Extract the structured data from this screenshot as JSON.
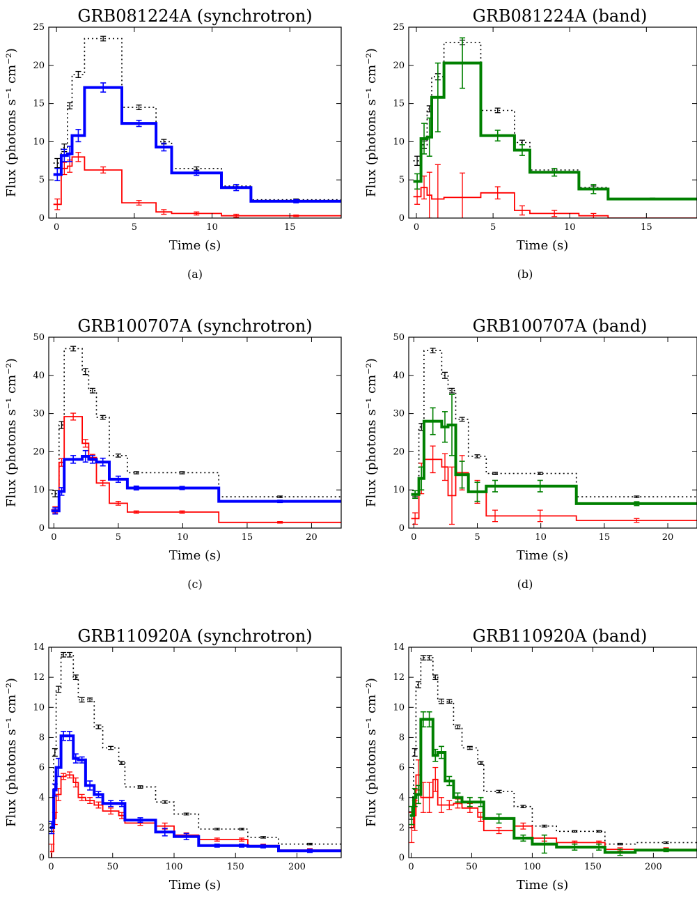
{
  "figure": {
    "ylabel": "Flux (photons s⁻¹ cm⁻²)",
    "legend_note": ""
  },
  "chart_data": [
    {
      "type": "line",
      "title": "GRB081224A (synchrotron)",
      "caption": "(a)",
      "xlabel": "Time (s)",
      "ylabel": "Flux (photons s⁻¹ cm⁻²)",
      "xlim": [
        -0.5,
        18.3
      ],
      "ylim": [
        0,
        25
      ],
      "xticks": [
        0,
        5,
        10,
        15
      ],
      "yticks": [
        0,
        5,
        10,
        15,
        20,
        25
      ],
      "edges": [
        -0.2,
        0.3,
        0.7,
        1.0,
        1.8,
        4.2,
        6.4,
        7.4,
        10.6,
        12.5,
        18.3
      ],
      "colors": {
        "total": "#000000",
        "model": "#0000ff",
        "component": "#ff0000"
      },
      "series": [
        {
          "name": "",
          "role": "total",
          "values": [
            7.2,
            9.2,
            14.7,
            18.8,
            23.5,
            14.5,
            10.0,
            6.5,
            4.2,
            2.4
          ],
          "err": [
            0.6,
            0.5,
            0.4,
            0.4,
            0.3,
            0.3,
            0.3,
            0.2,
            0.2,
            0.1
          ]
        },
        {
          "name": "",
          "role": "model",
          "values": [
            5.7,
            8.2,
            8.4,
            10.8,
            17.1,
            12.4,
            9.3,
            5.9,
            4.0,
            2.2
          ],
          "err": [
            0.8,
            0.8,
            1.0,
            0.8,
            0.6,
            0.4,
            0.5,
            0.3,
            0.4,
            0.2
          ]
        },
        {
          "name": "",
          "role": "component",
          "values": [
            1.8,
            6.5,
            6.8,
            8.0,
            6.3,
            2.0,
            0.8,
            0.6,
            0.3,
            0.3
          ],
          "err": [
            0.7,
            0.8,
            0.8,
            0.6,
            0.4,
            0.3,
            0.3,
            0.2,
            0.2,
            0.1
          ]
        }
      ]
    },
    {
      "type": "line",
      "title": "GRB081224A (band)",
      "caption": "(b)",
      "xlabel": "Time (s)",
      "ylabel": "Flux (photons s⁻¹ cm⁻²)",
      "xlim": [
        -0.5,
        18.3
      ],
      "ylim": [
        0,
        25
      ],
      "xticks": [
        0,
        5,
        10,
        15
      ],
      "yticks": [
        0,
        5,
        10,
        15,
        20,
        25
      ],
      "edges": [
        -0.2,
        0.3,
        0.7,
        1.0,
        1.8,
        4.2,
        6.4,
        7.4,
        10.6,
        12.5,
        18.3
      ],
      "colors": {
        "total": "#000000",
        "model": "#008000",
        "component": "#ff0000"
      },
      "series": [
        {
          "name": "",
          "role": "total",
          "values": [
            7.5,
            9.6,
            14.3,
            18.5,
            23.0,
            14.1,
            9.9,
            6.3,
            4.0,
            2.5
          ],
          "err": [
            0.6,
            0.5,
            0.4,
            0.4,
            0.3,
            0.3,
            0.3,
            0.2,
            0.2,
            0.1
          ]
        },
        {
          "name": "",
          "role": "model",
          "values": [
            4.8,
            10.4,
            10.6,
            15.8,
            20.3,
            10.8,
            8.9,
            6.0,
            3.8,
            2.5
          ],
          "err": [
            1.0,
            2.0,
            2.5,
            4.5,
            3.3,
            0.7,
            0.7,
            0.5,
            0.6,
            0.1
          ]
        },
        {
          "name": "",
          "role": "component",
          "values": [
            2.8,
            4.0,
            3.0,
            2.5,
            2.7,
            3.3,
            1.0,
            0.6,
            0.3,
            0.0
          ],
          "err": [
            1.0,
            1.5,
            3.0,
            4.5,
            3.2,
            0.8,
            0.6,
            0.4,
            0.3,
            0.0
          ]
        }
      ]
    },
    {
      "type": "line",
      "title": "GRB100707A (synchrotron)",
      "caption": "(c)",
      "xlabel": "Time (s)",
      "ylabel": "Flux (photons s⁻¹ cm⁻²)",
      "xlim": [
        -0.4,
        22.3
      ],
      "ylim": [
        0,
        50
      ],
      "xticks": [
        0,
        5,
        10,
        15,
        20
      ],
      "yticks": [
        0,
        10,
        20,
        30,
        40,
        50
      ],
      "edges": [
        -0.2,
        0.4,
        0.8,
        2.2,
        2.7,
        3.3,
        4.3,
        5.7,
        7.1,
        12.8,
        22.3
      ],
      "colors": {
        "total": "#000000",
        "model": "#0000ff",
        "component": "#ff0000"
      },
      "series": [
        {
          "name": "",
          "role": "total",
          "values": [
            9.0,
            27.0,
            47.0,
            41.0,
            36.0,
            29.0,
            19.0,
            14.5,
            14.5,
            8.2
          ],
          "err": [
            0.8,
            0.9,
            0.6,
            0.8,
            0.6,
            0.5,
            0.4,
            0.3,
            0.3,
            0.2
          ]
        },
        {
          "name": "",
          "role": "model",
          "values": [
            4.5,
            9.6,
            18.0,
            18.8,
            18.0,
            17.3,
            12.8,
            10.5,
            10.5,
            7.0
          ],
          "err": [
            0.8,
            1.0,
            1.0,
            1.5,
            1.0,
            1.0,
            0.8,
            0.5,
            0.4,
            0.3
          ]
        },
        {
          "name": "",
          "role": "component",
          "values": [
            4.8,
            17.2,
            29.2,
            22.2,
            18.5,
            11.8,
            6.5,
            4.2,
            4.2,
            1.5
          ],
          "err": [
            0.8,
            1.0,
            0.9,
            1.0,
            0.8,
            0.7,
            0.5,
            0.3,
            0.3,
            0.2
          ]
        }
      ]
    },
    {
      "type": "line",
      "title": "GRB100707A (band)",
      "caption": "(d)",
      "xlabel": "Time (s)",
      "ylabel": "Flux (photons s⁻¹ cm⁻²)",
      "xlim": [
        -0.4,
        22.3
      ],
      "ylim": [
        0,
        50
      ],
      "xticks": [
        0,
        5,
        10,
        15,
        20
      ],
      "yticks": [
        0,
        10,
        20,
        30,
        40,
        50
      ],
      "edges": [
        -0.2,
        0.4,
        0.8,
        2.2,
        2.7,
        3.3,
        4.3,
        5.7,
        7.1,
        12.8,
        22.3
      ],
      "colors": {
        "total": "#000000",
        "model": "#008000",
        "component": "#ff0000"
      },
      "series": [
        {
          "name": "",
          "role": "total",
          "values": [
            9.0,
            26.5,
            46.5,
            40.0,
            36.0,
            28.5,
            18.8,
            14.3,
            14.3,
            8.2
          ],
          "err": [
            0.8,
            0.9,
            0.6,
            0.8,
            0.6,
            0.5,
            0.4,
            0.3,
            0.3,
            0.2
          ]
        },
        {
          "name": "",
          "role": "model",
          "values": [
            8.8,
            13.0,
            28.0,
            26.5,
            27.0,
            14.0,
            9.5,
            11.0,
            11.0,
            6.4
          ],
          "err": [
            1.0,
            3.0,
            3.5,
            4.0,
            8.0,
            3.5,
            2.5,
            1.5,
            1.5,
            0.5
          ]
        },
        {
          "name": "",
          "role": "component",
          "values": [
            2.5,
            13.0,
            18.0,
            16.0,
            8.5,
            14.5,
            9.5,
            3.2,
            3.2,
            2.0
          ],
          "err": [
            1.5,
            4.0,
            3.5,
            3.5,
            7.5,
            4.5,
            3.0,
            1.5,
            1.5,
            0.5
          ]
        }
      ]
    },
    {
      "type": "line",
      "title": "GRB110920A (synchrotron)",
      "caption": "(e)",
      "xlabel": "Time (s)",
      "ylabel": "Flux (photons s⁻¹ cm⁻²)",
      "xlim": [
        -2,
        236
      ],
      "ylim": [
        0,
        14
      ],
      "xticks": [
        0,
        50,
        100,
        150,
        200
      ],
      "yticks": [
        0,
        2,
        4,
        6,
        8,
        10,
        12,
        14
      ],
      "edges": [
        -1,
        2,
        4,
        8,
        12,
        18,
        22,
        28,
        35,
        42,
        55,
        60,
        85,
        100,
        120,
        150,
        160,
        185,
        236
      ],
      "colors": {
        "total": "#000000",
        "model": "#0000ff",
        "component": "#ff0000"
      },
      "series": [
        {
          "name": "",
          "role": "total",
          "values": [
            2.0,
            7.0,
            11.2,
            13.5,
            13.5,
            12.0,
            10.5,
            10.5,
            8.7,
            7.3,
            6.3,
            4.7,
            3.7,
            2.9,
            1.9,
            1.9,
            1.35,
            0.9
          ],
          "err": [
            0.25,
            0.25,
            0.2,
            0.15,
            0.15,
            0.15,
            0.15,
            0.12,
            0.12,
            0.1,
            0.1,
            0.08,
            0.08,
            0.06,
            0.05,
            0.05,
            0.05,
            0.05
          ]
        },
        {
          "name": "",
          "role": "model",
          "values": [
            2.0,
            4.5,
            6.0,
            8.1,
            8.1,
            6.6,
            6.5,
            4.8,
            4.2,
            3.6,
            3.6,
            2.5,
            1.7,
            1.4,
            0.8,
            0.8,
            0.75,
            0.45
          ],
          "err": [
            0.4,
            0.4,
            0.6,
            0.3,
            0.3,
            0.3,
            0.2,
            0.3,
            0.2,
            0.2,
            0.2,
            0.15,
            0.25,
            0.2,
            0.1,
            0.1,
            0.1,
            0.1
          ]
        },
        {
          "name": "",
          "role": "component",
          "values": [
            0.4,
            2.6,
            4.2,
            5.4,
            5.5,
            5.0,
            4.0,
            3.8,
            3.5,
            3.1,
            2.8,
            2.3,
            2.1,
            1.5,
            1.2,
            1.2,
            0.8,
            0.5
          ],
          "err": [
            0.5,
            0.4,
            0.4,
            0.2,
            0.2,
            0.3,
            0.2,
            0.2,
            0.2,
            0.2,
            0.2,
            0.15,
            0.2,
            0.15,
            0.1,
            0.1,
            0.1,
            0.1
          ]
        }
      ]
    },
    {
      "type": "line",
      "title": "GRB110920A (band)",
      "caption": "(f)",
      "xlabel": "Time (s)",
      "ylabel": "Flux (photons s⁻¹ cm⁻²)",
      "xlim": [
        -2,
        236
      ],
      "ylim": [
        0,
        14
      ],
      "xticks": [
        0,
        50,
        100,
        150,
        200
      ],
      "yticks": [
        0,
        2,
        4,
        6,
        8,
        10,
        12,
        14
      ],
      "edges": [
        -1,
        2,
        4,
        8,
        12,
        18,
        22,
        28,
        35,
        42,
        55,
        60,
        85,
        100,
        120,
        150,
        160,
        185,
        236
      ],
      "colors": {
        "total": "#000000",
        "model": "#008000",
        "component": "#ff0000"
      },
      "series": [
        {
          "name": "",
          "role": "total",
          "values": [
            2.8,
            7.0,
            11.5,
            13.3,
            13.3,
            12.0,
            10.4,
            10.4,
            8.7,
            7.3,
            6.3,
            4.4,
            3.4,
            2.1,
            1.75,
            1.75,
            0.9,
            1.0
          ],
          "err": [
            0.25,
            0.25,
            0.2,
            0.15,
            0.15,
            0.15,
            0.15,
            0.12,
            0.12,
            0.1,
            0.1,
            0.08,
            0.08,
            0.06,
            0.05,
            0.05,
            0.05,
            0.05
          ]
        },
        {
          "name": "",
          "role": "model",
          "values": [
            2.8,
            4.0,
            4.2,
            9.2,
            9.2,
            6.8,
            7.0,
            5.1,
            4.0,
            3.7,
            3.7,
            2.6,
            1.3,
            0.9,
            0.7,
            0.7,
            0.35,
            0.5
          ],
          "err": [
            0.6,
            0.6,
            0.6,
            0.5,
            0.5,
            0.4,
            0.4,
            0.3,
            0.3,
            0.3,
            0.3,
            0.3,
            0.2,
            0.6,
            0.2,
            0.2,
            0.2,
            0.1
          ]
        },
        {
          "name": "",
          "role": "component",
          "values": [
            2.0,
            2.8,
            5.5,
            4.0,
            4.0,
            5.2,
            3.5,
            3.5,
            3.6,
            3.3,
            2.7,
            1.8,
            2.1,
            1.3,
            1.0,
            1.0,
            0.55,
            0.55
          ],
          "err": [
            1.0,
            1.0,
            1.0,
            1.0,
            1.0,
            0.8,
            0.5,
            0.3,
            0.3,
            0.3,
            0.3,
            0.2,
            0.2,
            0.2,
            0.1,
            0.1,
            0.1,
            0.1
          ]
        }
      ]
    }
  ]
}
